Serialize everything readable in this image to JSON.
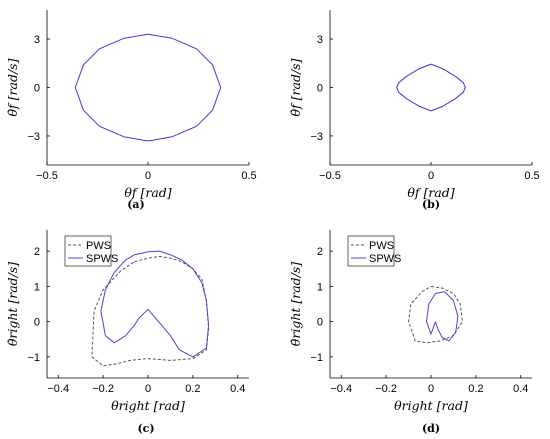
{
  "chart_data": [
    {
      "panel": "(a)",
      "type": "line",
      "xlabel": "θf [rad]",
      "ylabel": "θ̇f [rad/s]",
      "xlim": [
        -0.5,
        0.5
      ],
      "ylim": [
        -4.8,
        4.8
      ],
      "xticks": [
        "−0.5",
        "0",
        "0.5"
      ],
      "yticks": [
        "3",
        "0",
        "−3"
      ],
      "grid": false,
      "series": [
        {
          "color": "#3a3ad6",
          "style": "solid",
          "x": [
            0,
            0.12,
            0.24,
            0.32,
            0.36,
            0.32,
            0.24,
            0.12,
            0.01,
            -0.01,
            -0.12,
            -0.24,
            -0.32,
            -0.36,
            -0.32,
            -0.24,
            -0.12,
            0
          ],
          "y": [
            3.3,
            3.05,
            2.4,
            1.4,
            0,
            -1.4,
            -2.4,
            -3.05,
            -3.3,
            -3.3,
            -3.05,
            -2.4,
            -1.4,
            0,
            1.4,
            2.4,
            3.05,
            3.3
          ]
        }
      ]
    },
    {
      "panel": "(b)",
      "type": "line",
      "xlabel": "θf [rad]",
      "ylabel": "θ̇f [rad/s]",
      "xlim": [
        -0.5,
        0.5
      ],
      "ylim": [
        -4.8,
        4.8
      ],
      "xticks": [
        "−0.5",
        "0",
        "0.5"
      ],
      "yticks": [
        "3",
        "0",
        "−3"
      ],
      "grid": false,
      "series": [
        {
          "color": "#3a3ad6",
          "style": "solid",
          "x": [
            0,
            0.06,
            0.12,
            0.16,
            0.17,
            0.16,
            0.12,
            0.06,
            0,
            -0.06,
            -0.12,
            -0.16,
            -0.17,
            -0.16,
            -0.12,
            -0.06,
            0
          ],
          "y": [
            1.45,
            1.15,
            0.7,
            0.3,
            0,
            -0.3,
            -0.7,
            -1.15,
            -1.45,
            -1.15,
            -0.7,
            -0.3,
            0,
            0.3,
            0.7,
            1.15,
            1.45
          ]
        }
      ]
    },
    {
      "panel": "(c)",
      "type": "line",
      "xlabel": "θright [rad]",
      "ylabel": "θ̇right [rad/s]",
      "xlim": [
        -0.45,
        0.45
      ],
      "ylim": [
        -1.6,
        2.6
      ],
      "xticks": [
        "−0.4",
        "−0.2",
        "0",
        "0.2",
        "0.4"
      ],
      "yticks": [
        "2",
        "1",
        "0",
        "−1"
      ],
      "legend": {
        "position": "top-left",
        "entries": [
          "PWS",
          "SPWS"
        ]
      },
      "grid": false,
      "series": [
        {
          "name": "PWS",
          "color": "#555555",
          "style": "dashed",
          "x": [
            -0.06,
            0.0,
            0.05,
            0.1,
            0.15,
            0.2,
            0.24,
            0.26,
            0.27,
            0.26,
            0.2,
            0.1,
            0.0,
            -0.08,
            -0.14,
            -0.2,
            -0.25,
            -0.24,
            -0.2,
            -0.12,
            -0.06
          ],
          "y": [
            1.7,
            1.8,
            1.85,
            1.8,
            1.7,
            1.5,
            1.2,
            0.6,
            -0.2,
            -0.8,
            -1.05,
            -1.1,
            -1.05,
            -1.1,
            -1.2,
            -1.25,
            -1.0,
            0.3,
            0.9,
            1.45,
            1.7
          ]
        },
        {
          "name": "SPWS",
          "color": "#4747d1",
          "style": "solid",
          "x": [
            -0.06,
            -0.1,
            -0.15,
            -0.19,
            -0.21,
            -0.19,
            -0.15,
            -0.1,
            -0.06,
            -0.02,
            0.0,
            0.05,
            0.1,
            0.15,
            0.2,
            0.24,
            0.26,
            0.27,
            0.26,
            0.2,
            0.14,
            0.1,
            0.06,
            0.02,
            0.0,
            -0.04,
            -0.06
          ],
          "y": [
            -0.1,
            -0.4,
            -0.6,
            -0.4,
            0.3,
            0.9,
            1.4,
            1.75,
            1.9,
            1.95,
            1.98,
            2.0,
            1.9,
            1.75,
            1.5,
            1.1,
            0.6,
            -0.1,
            -0.75,
            -1.0,
            -0.8,
            -0.4,
            -0.1,
            0.2,
            0.35,
            0.1,
            -0.1
          ]
        }
      ]
    },
    {
      "panel": "(d)",
      "type": "line",
      "xlabel": "θright [rad]",
      "ylabel": "θ̇right [rad/s]",
      "xlim": [
        -0.45,
        0.45
      ],
      "ylim": [
        -1.6,
        2.6
      ],
      "xticks": [
        "−0.4",
        "−0.2",
        "0",
        "0.2",
        "0.4"
      ],
      "yticks": [
        "2",
        "1",
        "0",
        "−1"
      ],
      "legend": {
        "position": "top-left",
        "entries": [
          "PWS",
          "SPWS"
        ]
      },
      "grid": false,
      "series": [
        {
          "name": "PWS",
          "color": "#555555",
          "style": "dashed",
          "x": [
            0.0,
            0.05,
            0.1,
            0.13,
            0.14,
            0.1,
            0.04,
            -0.02,
            -0.07,
            -0.1,
            -0.09,
            -0.04,
            0.0
          ],
          "y": [
            1.0,
            0.95,
            0.8,
            0.5,
            0.0,
            -0.4,
            -0.55,
            -0.6,
            -0.55,
            0.0,
            0.5,
            0.85,
            1.0
          ]
        },
        {
          "name": "SPWS",
          "color": "#4747d1",
          "style": "solid",
          "x": [
            0.02,
            0.0,
            -0.02,
            -0.01,
            0.02,
            0.06,
            0.1,
            0.12,
            0.11,
            0.08,
            0.05,
            0.03,
            0.02
          ],
          "y": [
            0.0,
            -0.35,
            0.0,
            0.5,
            0.8,
            0.85,
            0.6,
            0.15,
            -0.3,
            -0.55,
            -0.45,
            -0.2,
            0.0
          ]
        }
      ]
    }
  ],
  "captions": [
    "(a)",
    "(b)",
    "(c)",
    "(d)"
  ]
}
